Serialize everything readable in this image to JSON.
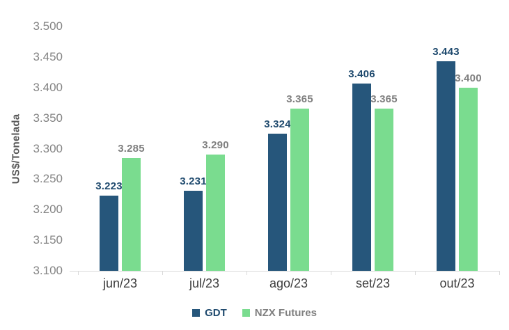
{
  "chart_data": {
    "type": "bar",
    "title": "",
    "ylabel": "US$/Tonelada",
    "xlabel": "",
    "categories": [
      "jun/23",
      "jul/23",
      "ago/23",
      "set/23",
      "out/23"
    ],
    "series": [
      {
        "name": "GDT",
        "color": "#26567B",
        "label_color": "#1F4A6E",
        "values": [
          3223,
          3231,
          3324,
          3406,
          3443
        ],
        "labels": [
          "3.223",
          "3.231",
          "3.324",
          "3.406",
          "3.443"
        ]
      },
      {
        "name": "NZX Futures",
        "color": "#7ADC8F",
        "label_color": "#7F7F7F",
        "values": [
          3285,
          3290,
          3365,
          3365,
          3400
        ],
        "labels": [
          "3.285",
          "3.290",
          "3.365",
          "3.365",
          "3.400"
        ]
      }
    ],
    "ylim": [
      3100,
      3500
    ],
    "y_tick_labels_top_to_bottom": [
      "3.500",
      "3.450",
      "3.400",
      "3.350",
      "3.300",
      "3.250",
      "3.200",
      "3.150",
      "3.100"
    ],
    "grid": false,
    "legend_position": "bottom"
  }
}
